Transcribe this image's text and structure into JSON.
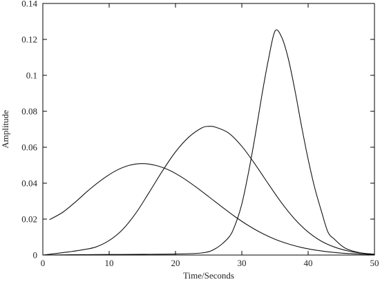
{
  "chart_data": {
    "type": "line",
    "title": "",
    "xlabel": "Time/Seconds",
    "ylabel": "Amplitude",
    "xlim": [
      0,
      50
    ],
    "ylim": [
      0,
      0.14
    ],
    "grid": false,
    "x_ticks": [
      0,
      10,
      20,
      30,
      40,
      50
    ],
    "x_tick_labels": [
      "0",
      "10",
      "20",
      "30",
      "40",
      "50"
    ],
    "y_ticks": [
      0,
      0.02,
      0.04,
      0.06,
      0.08,
      0.1,
      0.12,
      0.14
    ],
    "y_tick_labels": [
      "0",
      "0.02",
      "0.04",
      "0.06",
      "0.08",
      "0.1",
      "0.12",
      "0.14"
    ],
    "line_color": "#111111",
    "series": [
      {
        "x": [
          1,
          3,
          5,
          7,
          9,
          11,
          13,
          15,
          17,
          19,
          21,
          23,
          25,
          27,
          29,
          31,
          33,
          35,
          37,
          39,
          41,
          43,
          45,
          47,
          49,
          50
        ],
        "values": [
          0.0197,
          0.0238,
          0.0298,
          0.0364,
          0.0422,
          0.0469,
          0.0499,
          0.0509,
          0.0499,
          0.0473,
          0.0432,
          0.0381,
          0.0325,
          0.0268,
          0.0213,
          0.0164,
          0.0122,
          0.0088,
          0.0062,
          0.0042,
          0.0028,
          0.0018,
          0.0011,
          0.0007,
          0.0004,
          0.0003
        ]
      },
      {
        "x": [
          0,
          2,
          4,
          6,
          8,
          10,
          12,
          14,
          16,
          18,
          20,
          22,
          24,
          25,
          26,
          28,
          30,
          32,
          34,
          36,
          38,
          40,
          42,
          44,
          46,
          48,
          50
        ],
        "values": [
          0.0,
          0.0009,
          0.0018,
          0.0029,
          0.0045,
          0.0081,
          0.0141,
          0.0232,
          0.0347,
          0.0466,
          0.0574,
          0.0656,
          0.0708,
          0.0716,
          0.0712,
          0.0679,
          0.0605,
          0.0505,
          0.0396,
          0.029,
          0.0199,
          0.0128,
          0.0077,
          0.0044,
          0.0023,
          0.0011,
          0.0005
        ]
      },
      {
        "x": [
          0,
          5,
          10,
          15,
          20,
          24,
          26,
          28,
          29,
          30,
          31,
          32,
          33,
          34,
          35,
          36,
          37,
          38,
          39,
          40,
          41,
          42,
          43,
          44,
          45,
          46,
          48,
          50
        ],
        "values": [
          0.0,
          0.0002,
          0.0003,
          0.0004,
          0.0006,
          0.0012,
          0.0035,
          0.0097,
          0.0168,
          0.0284,
          0.0458,
          0.0661,
          0.0884,
          0.1086,
          0.1246,
          0.1213,
          0.1094,
          0.0918,
          0.0718,
          0.0533,
          0.0373,
          0.0244,
          0.0127,
          0.0087,
          0.0053,
          0.0031,
          0.0012,
          0.0004
        ]
      }
    ]
  }
}
